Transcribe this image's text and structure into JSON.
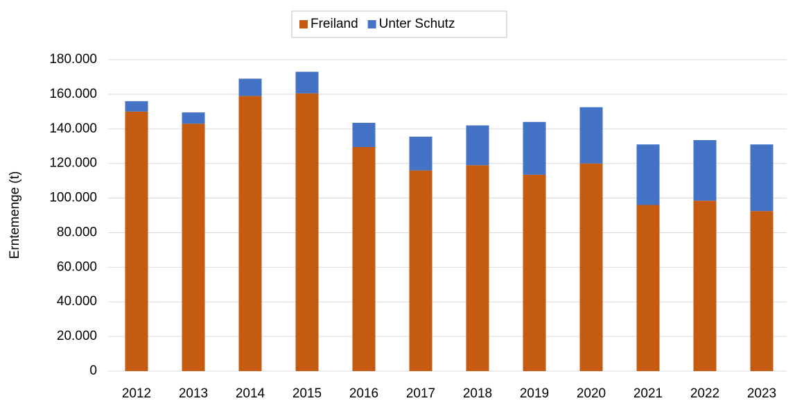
{
  "chart_data": {
    "type": "stacked_bar",
    "y_label": "Erntemenge (t)",
    "categories": [
      "2012",
      "2013",
      "2014",
      "2015",
      "2016",
      "2017",
      "2018",
      "2019",
      "2020",
      "2021",
      "2022",
      "2023"
    ],
    "series": [
      {
        "name": "Freiland",
        "color": "#c55a11",
        "values": [
          150000,
          143000,
          159000,
          160500,
          129500,
          116000,
          119000,
          113500,
          120000,
          96000,
          98500,
          92500
        ]
      },
      {
        "name": "Unter Schutz",
        "color": "#4472c4",
        "values": [
          6000,
          6500,
          10000,
          12500,
          14000,
          19500,
          23000,
          30500,
          32500,
          35000,
          35000,
          38500
        ]
      }
    ],
    "ylim": [
      0,
      180000
    ],
    "yticks": [
      0,
      {
        "value": 20000,
        "label": "20.000"
      },
      {
        "value": 40000,
        "label": "40.000"
      },
      {
        "value": 60000,
        "label": "60.000"
      },
      {
        "value": 80000,
        "label": "80.000"
      },
      {
        "value": 100000,
        "label": "100.000"
      },
      {
        "value": 120000,
        "label": "120.000"
      },
      {
        "value": 140000,
        "label": "140.000"
      },
      {
        "value": 160000,
        "label": "160.000"
      },
      {
        "value": 180000,
        "label": "180.000"
      }
    ],
    "grid": true,
    "legend": "top"
  }
}
